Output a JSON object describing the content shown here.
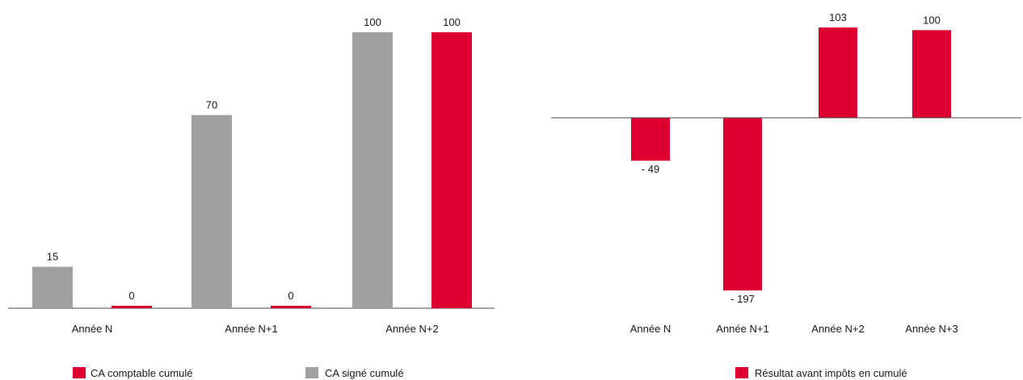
{
  "chart_data": [
    {
      "type": "bar",
      "categories": [
        "Année N",
        "Année N+1",
        "Année N+2"
      ],
      "series": [
        {
          "name": "CA signé cumulé",
          "values": [
            15,
            70,
            100
          ],
          "color": "#a0a0a0"
        },
        {
          "name": "CA comptable cumulé",
          "values": [
            0,
            0,
            100
          ],
          "color": "#de0030"
        }
      ],
      "value_labels": [
        [
          "15",
          "70",
          "100"
        ],
        [
          "0",
          "0",
          "100"
        ]
      ],
      "ylim": [
        0,
        100
      ],
      "grid": false,
      "legend": {
        "placement": "bottom",
        "items": [
          {
            "label": "CA comptable cumulé",
            "color": "#de0030"
          },
          {
            "label": "CA signé cumulé",
            "color": "#a0a0a0"
          }
        ]
      }
    },
    {
      "type": "bar",
      "categories": [
        "Année N",
        "Année N+1",
        "Année N+2",
        "Année N+3"
      ],
      "series": [
        {
          "name": "Résultat avant impôts en cumulé",
          "values": [
            -49,
            -197,
            103,
            100
          ],
          "color": "#de0030"
        }
      ],
      "value_labels": [
        "- 49",
        "- 197",
        "103",
        "100"
      ],
      "ylim": [
        -197,
        103
      ],
      "grid": false,
      "legend": {
        "placement": "bottom",
        "items": [
          {
            "label": "Résultat avant impôts en cumulé",
            "color": "#de0030"
          }
        ]
      }
    }
  ]
}
